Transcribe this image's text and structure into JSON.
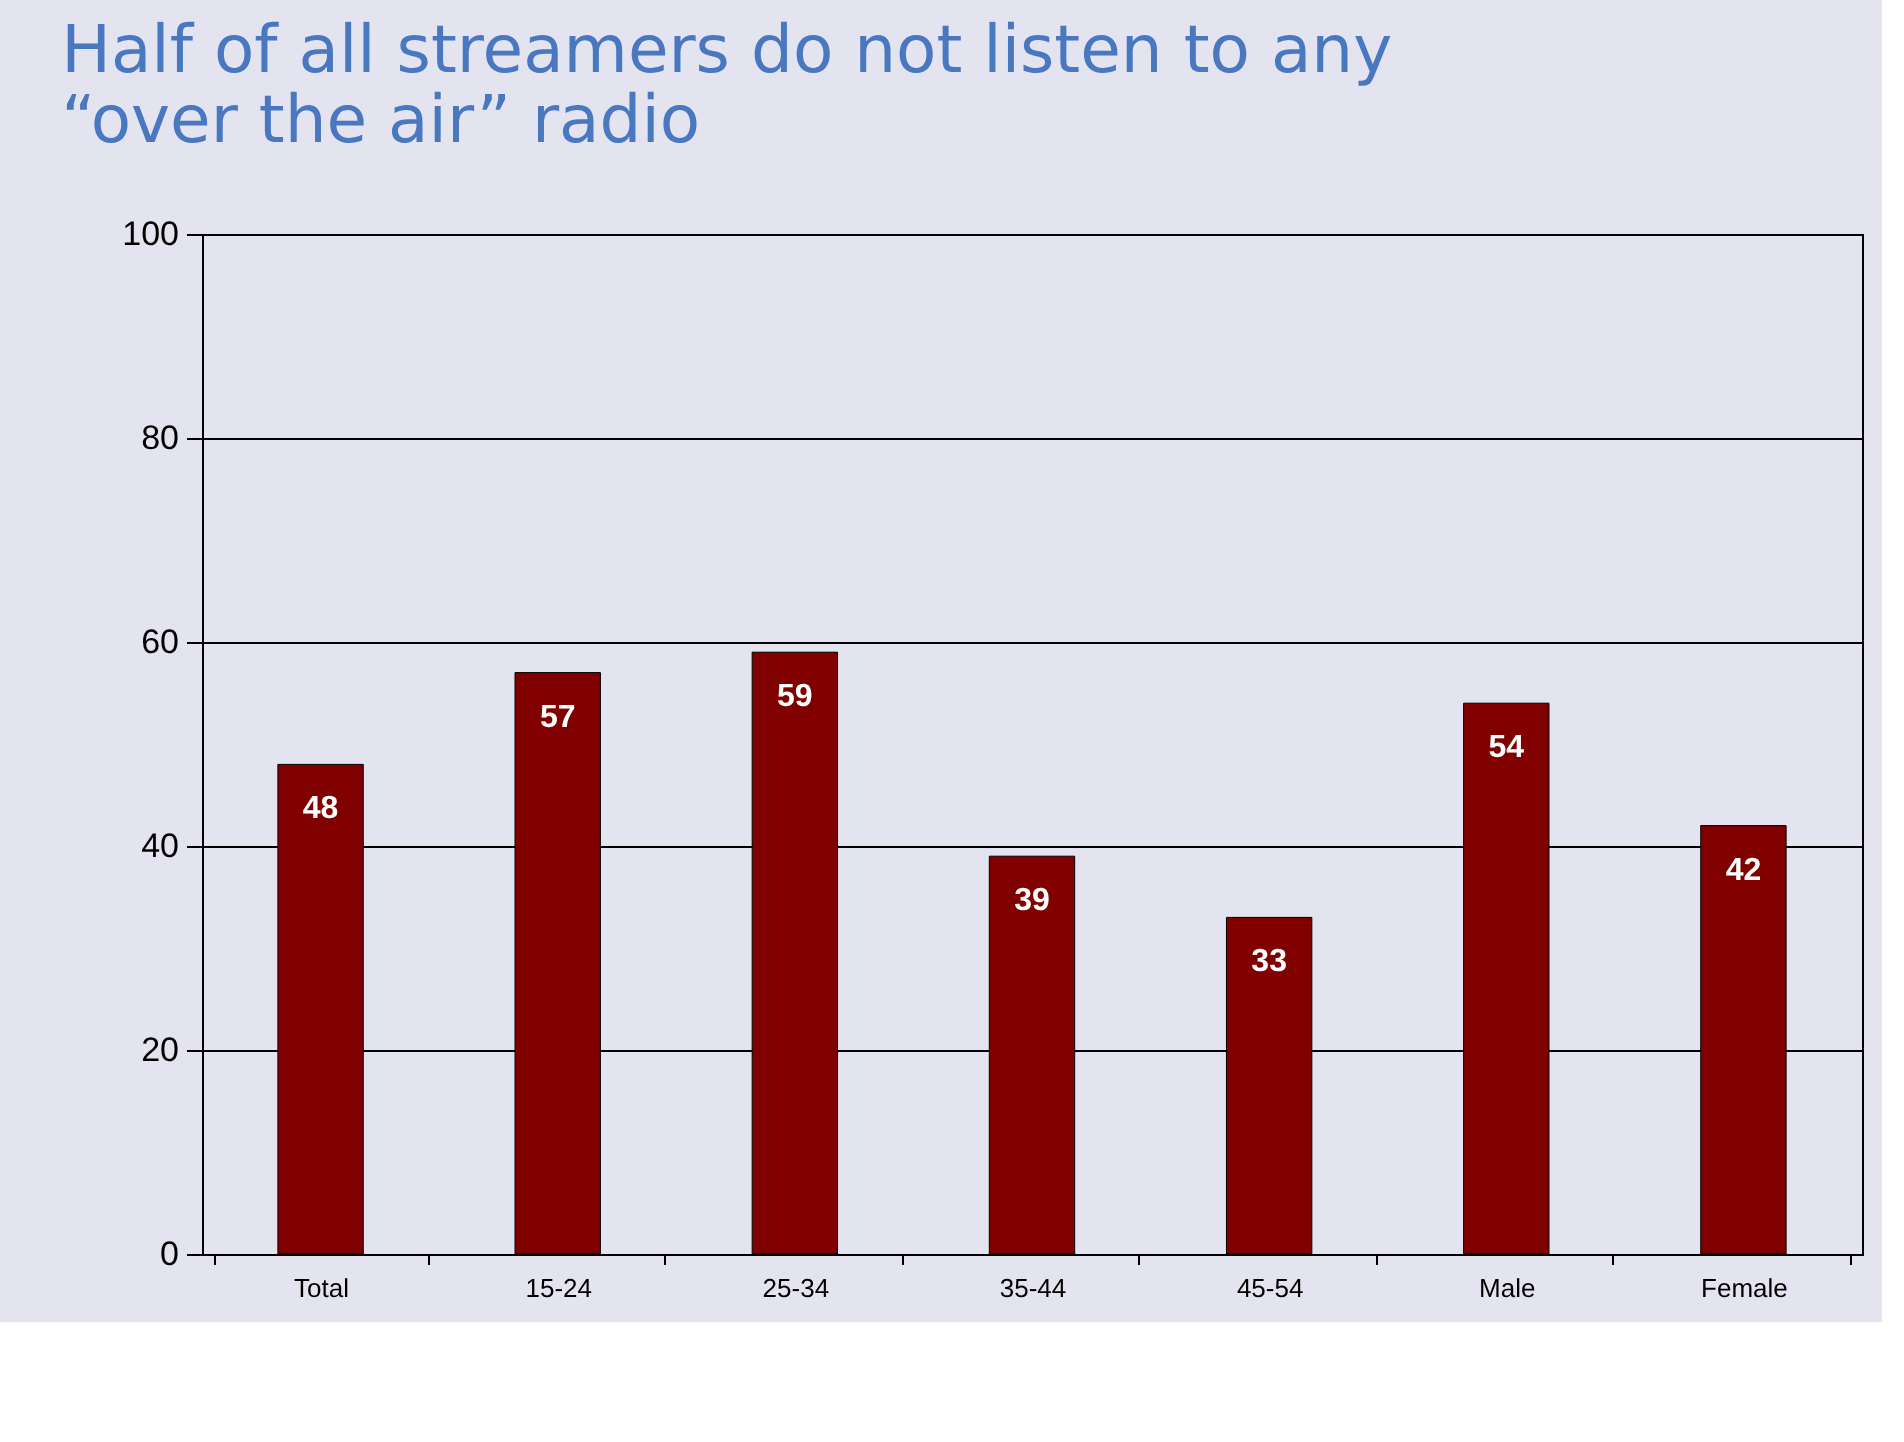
{
  "chart_data": {
    "type": "bar",
    "title": [
      "Half of all streamers do not listen to any",
      "“over the air” radio"
    ],
    "categories": [
      "Total",
      "15-24",
      "25-34",
      "35-44",
      "45-54",
      "Male",
      "Female"
    ],
    "values": [
      48,
      57,
      59,
      39,
      33,
      54,
      42
    ],
    "color": "#800000",
    "ylim": [
      0,
      100
    ],
    "yticks": [
      0,
      20,
      40,
      60,
      80,
      100
    ],
    "grid": "y",
    "data_labels": true
  }
}
